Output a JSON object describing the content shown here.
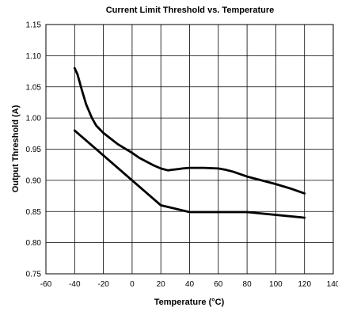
{
  "chart_data": {
    "type": "line",
    "title": "Current Limit Threshold vs. Temperature",
    "xlabel": "Temperature (°C)",
    "ylabel": "Output Threshold (A)",
    "xlim": [
      -60,
      140
    ],
    "ylim": [
      0.75,
      1.15
    ],
    "x_ticks": [
      "-60",
      "-40",
      "-20",
      "0",
      "20",
      "40",
      "60",
      "80",
      "100",
      "120",
      "140"
    ],
    "y_ticks": [
      "0.75",
      "0.80",
      "0.85",
      "0.90",
      "0.95",
      "1.00",
      "1.05",
      "1.10",
      "1.15"
    ],
    "grid": true,
    "legend": "none",
    "series": [
      {
        "x": [
          -40,
          -38,
          -35,
          -32,
          -28,
          -25,
          -20,
          -15,
          -10,
          -5,
          0,
          5,
          10,
          15,
          20,
          25,
          28,
          32,
          35,
          40,
          50,
          60,
          65,
          70,
          80,
          90,
          100,
          110,
          120
        ],
        "y": [
          1.08,
          1.07,
          1.045,
          1.022,
          1.0,
          0.988,
          0.976,
          0.967,
          0.958,
          0.951,
          0.944,
          0.936,
          0.93,
          0.924,
          0.919,
          0.916,
          0.917,
          0.918,
          0.919,
          0.92,
          0.92,
          0.919,
          0.917,
          0.914,
          0.906,
          0.9,
          0.894,
          0.887,
          0.879
        ]
      },
      {
        "x": [
          -40,
          0,
          20,
          40,
          80,
          120
        ],
        "y": [
          0.98,
          0.9,
          0.86,
          0.849,
          0.849,
          0.84
        ]
      }
    ]
  }
}
